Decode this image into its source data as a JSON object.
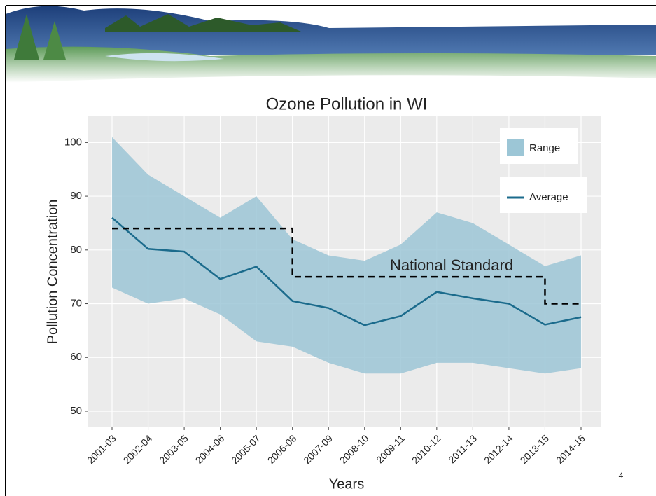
{
  "slide_number": "4",
  "chart_data": {
    "type": "band-line",
    "title": "Ozone Pollution in WI",
    "x_label": "Years",
    "y_label": "Pollution Concentration",
    "categories": [
      "2001-03",
      "2002-04",
      "2003-05",
      "2004-06",
      "2005-07",
      "2006-08",
      "2007-09",
      "2008-10",
      "2009-11",
      "2010-12",
      "2011-13",
      "2012-14",
      "2013-15",
      "2014-16"
    ],
    "series": [
      {
        "name": "Range",
        "color": "#9cc6d6",
        "upper": [
          101,
          94,
          90,
          86,
          90,
          82,
          79,
          78,
          81,
          87,
          85,
          81,
          77,
          79
        ],
        "lower": [
          73,
          70,
          71,
          68,
          63,
          62,
          59,
          57,
          57,
          59,
          59,
          58,
          57,
          58
        ]
      },
      {
        "name": "Average",
        "color": "#1b6b8c",
        "values": [
          86,
          80.2,
          79.7,
          74.6,
          76.9,
          70.5,
          69.2,
          66,
          67.7,
          72.2,
          71,
          70,
          66.1,
          67.5
        ]
      }
    ],
    "standard": {
      "name": "National Standard",
      "color": "#000000",
      "values": [
        84,
        84,
        84,
        84,
        84,
        84,
        75,
        75,
        75,
        75,
        75,
        75,
        75,
        70
      ]
    },
    "ylim": [
      47,
      105
    ],
    "yticks": [
      50,
      60,
      70,
      80,
      90,
      100
    ],
    "grid": true,
    "legend": "top-right"
  }
}
